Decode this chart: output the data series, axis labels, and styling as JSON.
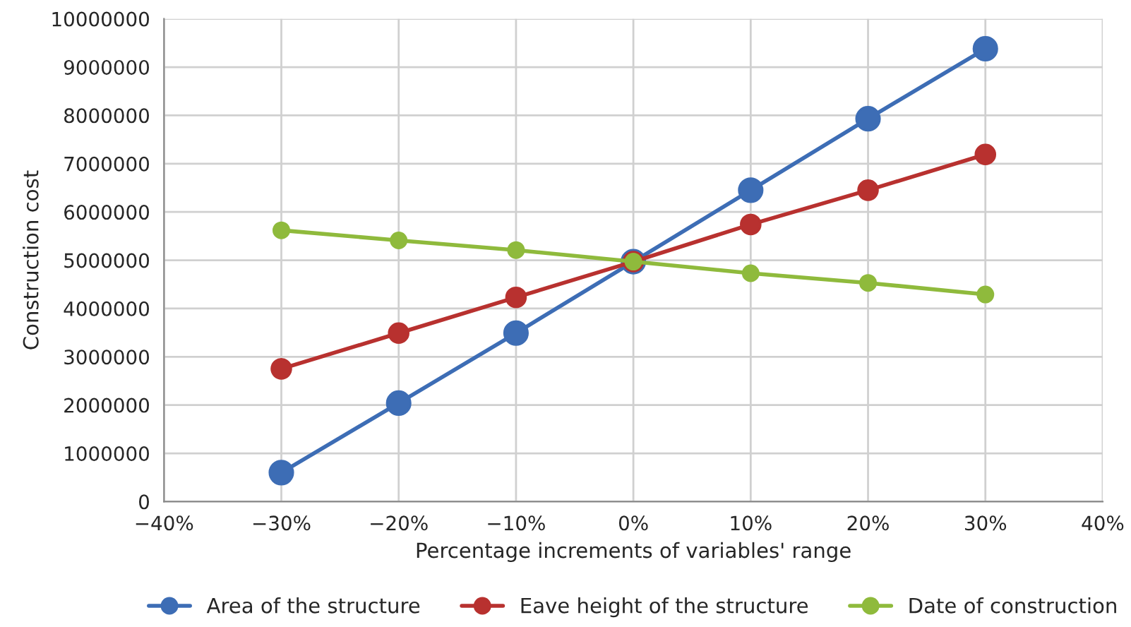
{
  "chart_data": {
    "type": "line",
    "xlabel": "Percentage increments of variables' range",
    "ylabel": "Construction cost",
    "x": [
      -30,
      -20,
      -10,
      0,
      10,
      20,
      30
    ],
    "series": [
      {
        "name": "Area of the structure",
        "color": "#3d6db5",
        "values": [
          600000,
          2040000,
          3490000,
          4970000,
          6450000,
          7930000,
          9380000
        ]
      },
      {
        "name": "Eave height of the structure",
        "color": "#b8312f",
        "values": [
          2750000,
          3490000,
          4230000,
          4970000,
          5740000,
          6450000,
          7190000
        ]
      },
      {
        "name": "Date of construction",
        "color": "#8fba3c",
        "values": [
          5620000,
          5410000,
          5210000,
          4970000,
          4730000,
          4530000,
          4290000
        ]
      }
    ],
    "xlim": [
      -40,
      40
    ],
    "xticks": [
      {
        "value": -40,
        "label": "−40%"
      },
      {
        "value": -30,
        "label": "−30%"
      },
      {
        "value": -20,
        "label": "−20%"
      },
      {
        "value": -10,
        "label": "−10%"
      },
      {
        "value": 0,
        "label": "0%"
      },
      {
        "value": 10,
        "label": "10%"
      },
      {
        "value": 20,
        "label": "20%"
      },
      {
        "value": 30,
        "label": "30%"
      },
      {
        "value": 40,
        "label": "40%"
      }
    ],
    "ylim": [
      0,
      10000000
    ],
    "yticks": [
      0,
      1000000,
      2000000,
      3000000,
      4000000,
      5000000,
      6000000,
      7000000,
      8000000,
      9000000,
      10000000
    ],
    "grid": true,
    "legend": "bottom",
    "marker": "circle",
    "line_style": "solid"
  }
}
